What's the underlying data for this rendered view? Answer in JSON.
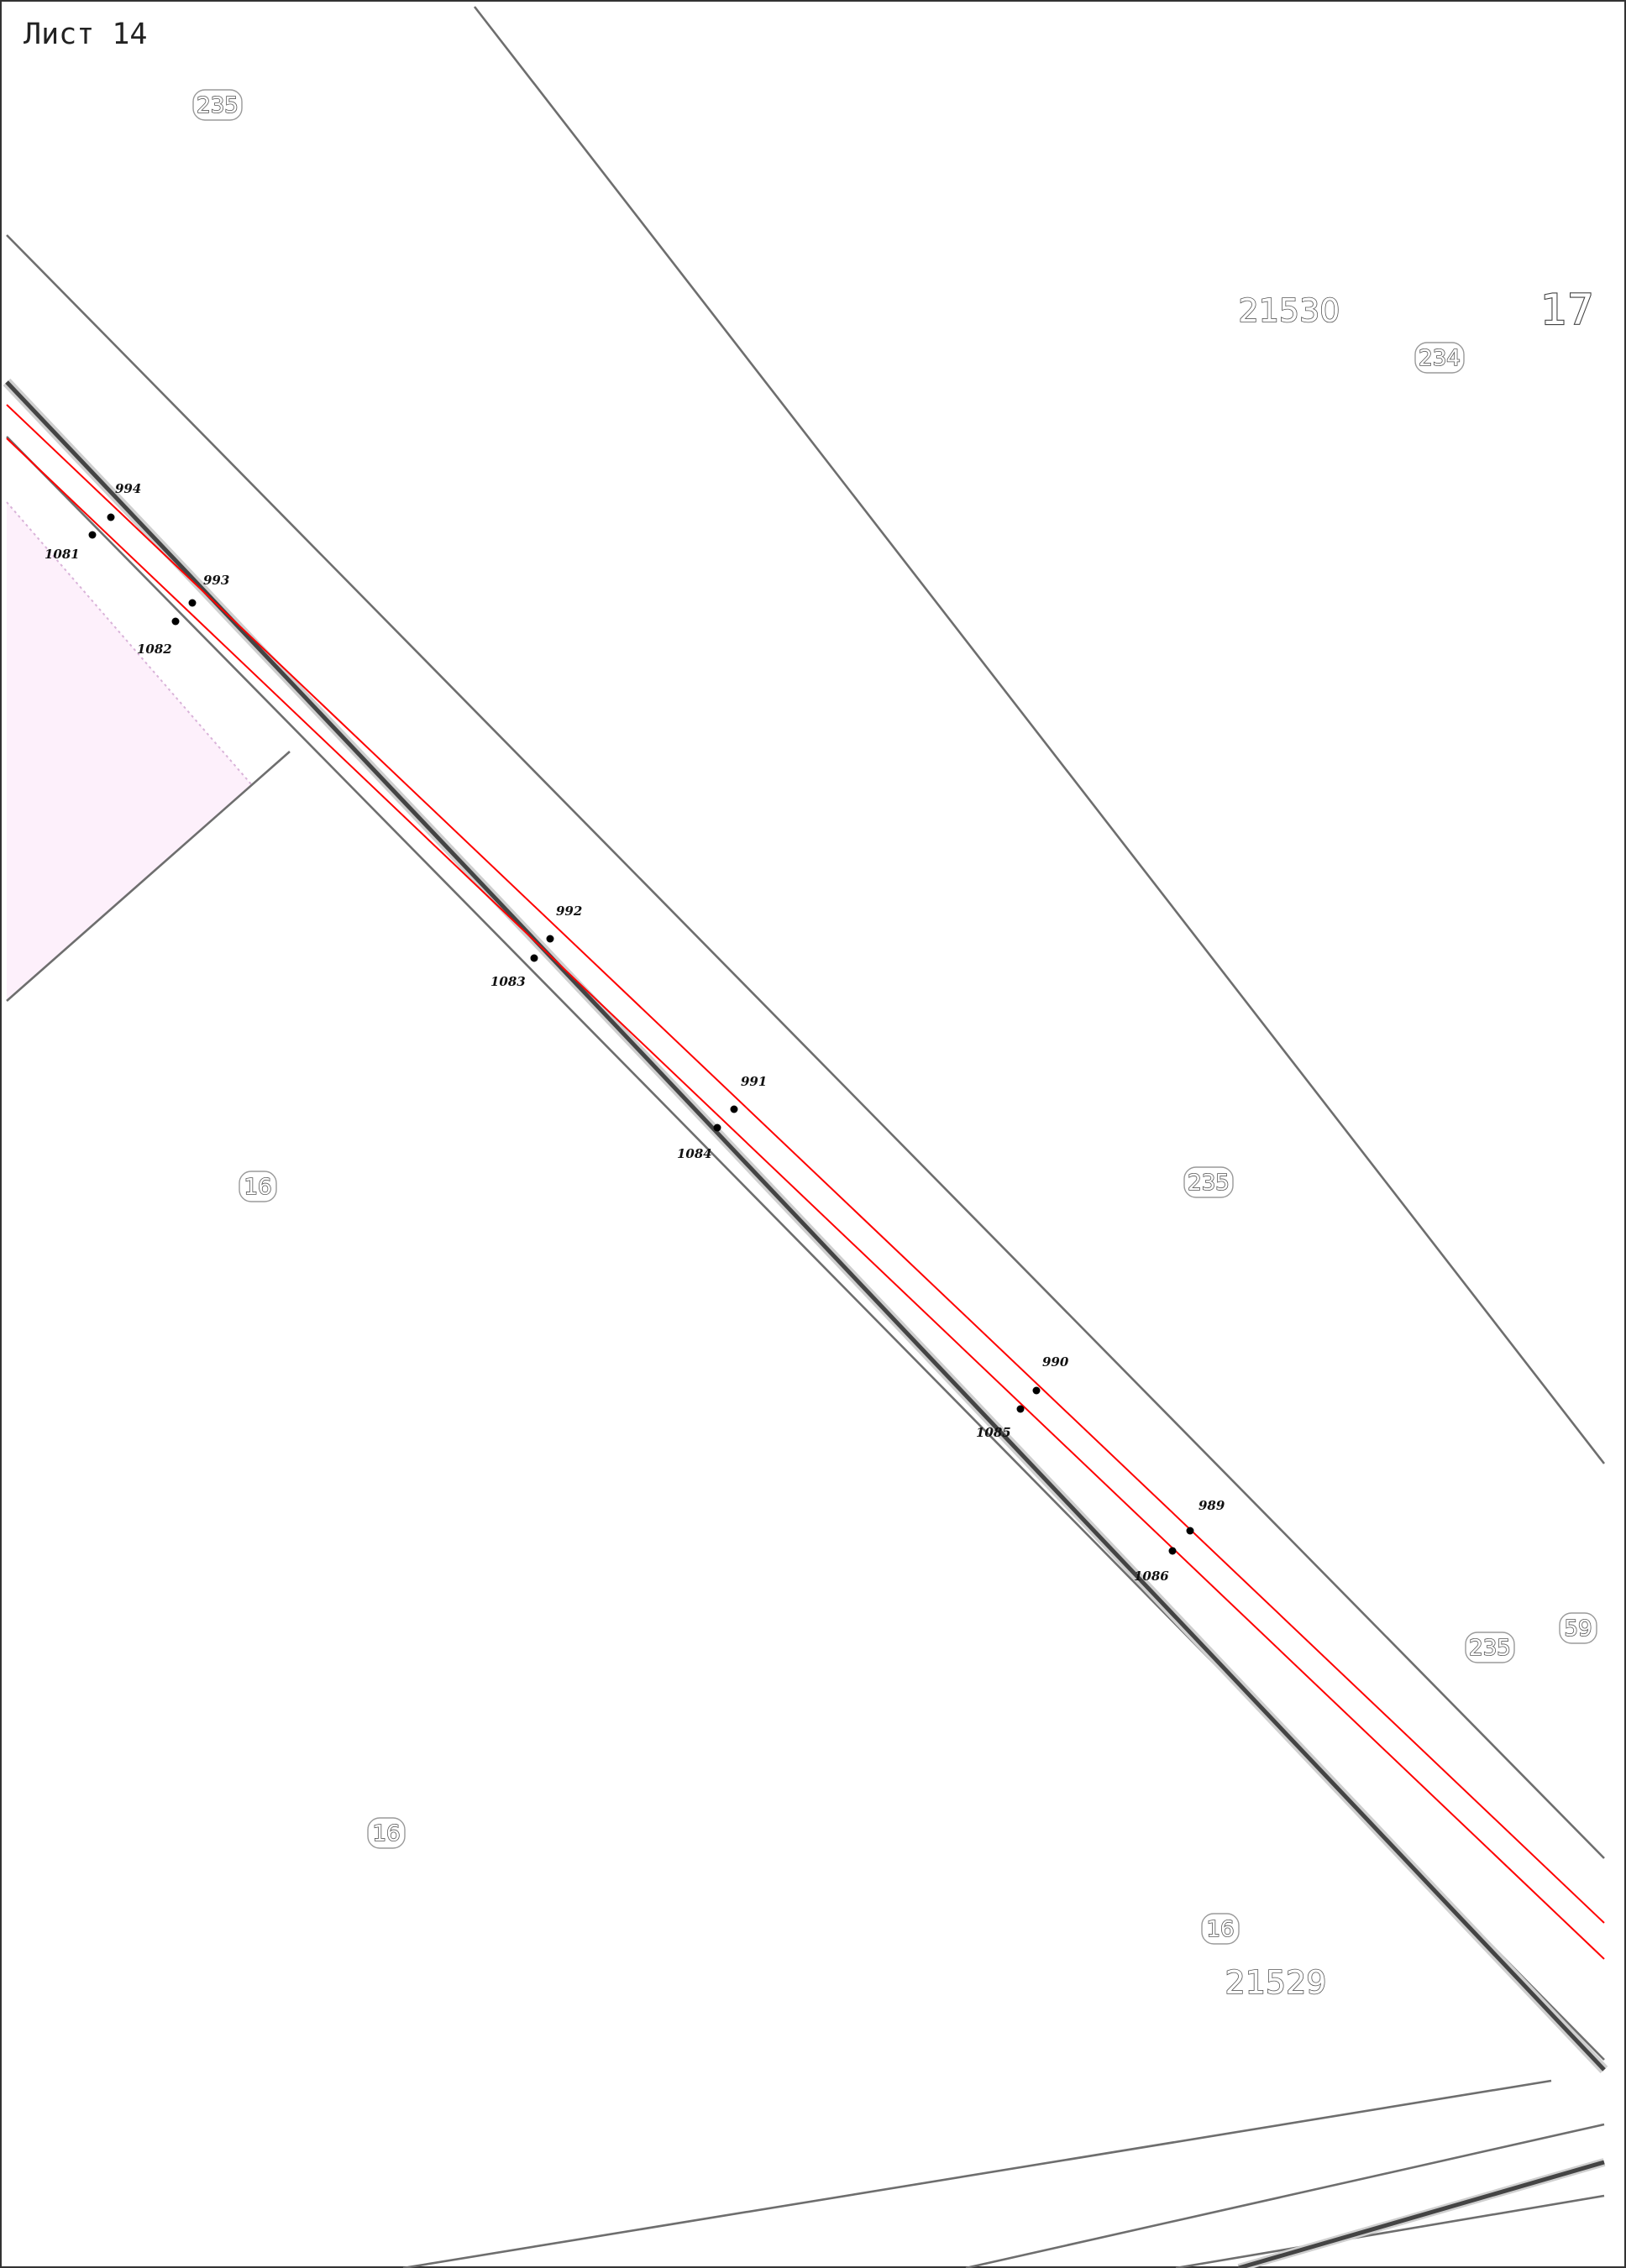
{
  "sheet": {
    "label": "Лист 14"
  },
  "map": {
    "colors": {
      "boundary": "#6e6e6e",
      "road_edge": "#444444",
      "route_line": "#ff0000",
      "highlight_zone": "#fdf0fb",
      "point_marker": "#000000"
    }
  },
  "parcels": {
    "p235_top": "235",
    "p21530": "21530",
    "p17": "17",
    "p234": "234",
    "p235_mid": "235",
    "p16_left": "16",
    "p16_low": "16",
    "p16_right": "16",
    "p21529": "21529",
    "p235_right": "235",
    "p59": "59"
  },
  "points": {
    "upper": [
      "994",
      "993",
      "992",
      "991",
      "990",
      "989"
    ],
    "lower": [
      "1081",
      "1082",
      "1083",
      "1084",
      "1085",
      "1086"
    ]
  }
}
